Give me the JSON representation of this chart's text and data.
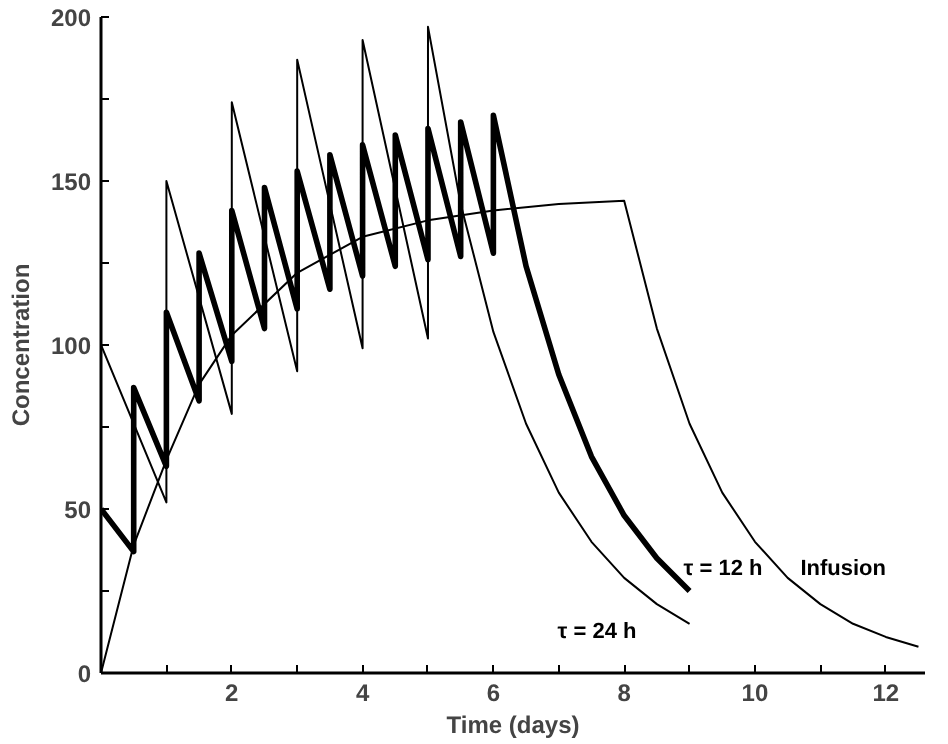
{
  "chart_data": {
    "type": "line",
    "xlabel": "Time (days)",
    "ylabel": "Concentration",
    "xlim": [
      0,
      12.6
    ],
    "ylim": [
      0,
      200
    ],
    "xticks": [
      {
        "value": 0,
        "label": null
      },
      {
        "value": 1,
        "label": null
      },
      2,
      {
        "value": 3,
        "label": null
      },
      4,
      {
        "value": 5,
        "label": null
      },
      6,
      {
        "value": 7,
        "label": null
      },
      8,
      {
        "value": 9,
        "label": null
      },
      10,
      {
        "value": 11,
        "label": null
      },
      12
    ],
    "yticks": [
      0,
      {
        "value": 25,
        "label": null
      },
      50,
      {
        "value": 75,
        "label": null
      },
      100,
      {
        "value": 125,
        "label": null
      },
      150,
      {
        "value": 175,
        "label": null
      },
      200
    ],
    "grid": false,
    "legend": false,
    "marker": "none",
    "line_style": "solid",
    "series": [
      {
        "name": "τ = 24 h",
        "color": "#000000",
        "x": [
          0,
          1,
          1,
          2,
          2,
          3,
          3,
          4,
          4,
          5,
          5,
          5.5,
          6,
          6.5,
          7,
          7.5,
          8,
          8.5,
          9
        ],
        "values": [
          100,
          52,
          150,
          79,
          174,
          92,
          187,
          99,
          193,
          102,
          197,
          143,
          104,
          76,
          55,
          40,
          29,
          21,
          15
        ]
      },
      {
        "name": "τ = 12 h",
        "color": "#000000",
        "x": [
          0,
          0.5,
          0.5,
          1,
          1,
          1.5,
          1.5,
          2,
          2,
          2.5,
          2.5,
          3,
          3,
          3.5,
          3.5,
          4,
          4,
          4.5,
          4.5,
          5,
          5,
          5.5,
          5.5,
          6,
          6,
          6.5,
          7,
          7.5,
          8,
          8.5,
          9
        ],
        "values": [
          50,
          37,
          87,
          63,
          110,
          83,
          128,
          95,
          141,
          105,
          148,
          111,
          153,
          117,
          158,
          121,
          161,
          124,
          164,
          126,
          166,
          127,
          168,
          128,
          170,
          124,
          91,
          66,
          48,
          35,
          25
        ]
      },
      {
        "name": "Infusion",
        "color": "#000000",
        "x": [
          0,
          0.5,
          1,
          1.5,
          2,
          3,
          4,
          5,
          6,
          7,
          8,
          8.5,
          9,
          9.5,
          10,
          10.5,
          11,
          11.5,
          12,
          12.5
        ],
        "values": [
          0,
          39,
          65,
          88,
          103,
          122,
          133,
          138,
          141,
          143,
          144,
          105,
          76,
          55,
          40,
          29,
          21,
          15,
          11,
          8
        ]
      }
    ]
  }
}
